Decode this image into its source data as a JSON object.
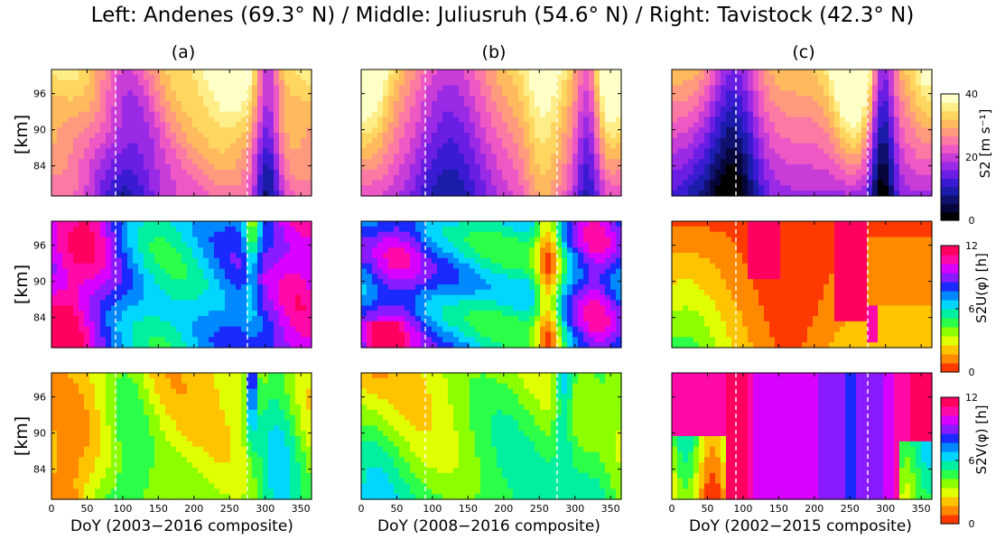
{
  "title": "Left: Andenes (69.3° N) / Middle: Juliusruh (54.6° N) / Right: Tavistock (42.3° N)",
  "panel_labels": [
    "(a)",
    "(b)",
    "(c)"
  ],
  "xlabels": [
    "DoY (2003−2016 composite)",
    "DoY (2008−2016 composite)",
    "DoY (2002−2015 composite)"
  ],
  "ylabel": "[km]",
  "colorbar_labels": [
    "S2 [m s⁻¹]",
    "S2U(φ) [h]",
    "S2V(φ) [h]"
  ],
  "colors": {
    "amp": [
      "#000000",
      "#06063a",
      "#10106e",
      "#1c1caa",
      "#3a1ad2",
      "#6a1ee4",
      "#9a2ae6",
      "#c83cd8",
      "#ee58c4",
      "#fa7aa4",
      "#ff9a7e",
      "#ffba5e",
      "#ffd660",
      "#ffee88",
      "#ffffc8"
    ],
    "phase": [
      "#ff3a00",
      "#ff8a00",
      "#ffc400",
      "#e0ff00",
      "#8cff00",
      "#2cff4a",
      "#00f0a0",
      "#00d6ff",
      "#0088ff",
      "#1a2aff",
      "#8a1aff",
      "#d800ff",
      "#ff0aa8",
      "#ff0060"
    ]
  },
  "chart_data": [
    {
      "type": "heatmap",
      "panel": "(a)",
      "row": "amplitude",
      "station": "Andenes",
      "x_ticks": [],
      "y_ticks": [
        84,
        90,
        96
      ],
      "xlim": [
        0,
        365
      ],
      "ylim": [
        79,
        100
      ],
      "vlines_doy": [
        90,
        275
      ],
      "colorbar": {
        "ticks": [
          0,
          20,
          40
        ],
        "range": [
          0,
          40
        ]
      }
    },
    {
      "type": "heatmap",
      "panel": "(b)",
      "row": "amplitude",
      "station": "Juliusruh",
      "x_ticks": [],
      "y_ticks": [
        84,
        90,
        96
      ],
      "xlim": [
        0,
        365
      ],
      "ylim": [
        79,
        100
      ],
      "vlines_doy": [
        90,
        275
      ]
    },
    {
      "type": "heatmap",
      "panel": "(c)",
      "row": "amplitude",
      "station": "Tavistock",
      "x_ticks": [],
      "y_ticks": [
        84,
        90,
        96
      ],
      "xlim": [
        0,
        365
      ],
      "ylim": [
        79,
        100
      ],
      "vlines_doy": [
        90,
        275
      ]
    },
    {
      "type": "heatmap",
      "panel": "(a)",
      "row": "zonal phase",
      "station": "Andenes",
      "x_ticks": [],
      "y_ticks": [
        84,
        90,
        96
      ],
      "xlim": [
        0,
        365
      ],
      "ylim": [
        79,
        100
      ],
      "vlines_doy": [
        90,
        275
      ],
      "colorbar": {
        "ticks": [
          0,
          6,
          12
        ],
        "range": [
          0,
          12
        ]
      }
    },
    {
      "type": "heatmap",
      "panel": "(b)",
      "row": "zonal phase",
      "station": "Juliusruh",
      "x_ticks": [],
      "y_ticks": [
        84,
        90,
        96
      ],
      "xlim": [
        0,
        365
      ],
      "ylim": [
        79,
        100
      ],
      "vlines_doy": [
        90,
        275
      ]
    },
    {
      "type": "heatmap",
      "panel": "(c)",
      "row": "zonal phase",
      "station": "Tavistock",
      "x_ticks": [],
      "y_ticks": [
        84,
        90,
        96
      ],
      "xlim": [
        0,
        365
      ],
      "ylim": [
        79,
        100
      ],
      "vlines_doy": [
        90,
        275
      ]
    },
    {
      "type": "heatmap",
      "panel": "(a)",
      "row": "meridional phase",
      "station": "Andenes",
      "x_ticks": [
        0,
        50,
        100,
        150,
        200,
        250,
        300,
        350
      ],
      "y_ticks": [
        84,
        90,
        96
      ],
      "xlim": [
        0,
        365
      ],
      "ylim": [
        79,
        100
      ],
      "vlines_doy": [
        90,
        275
      ],
      "colorbar": {
        "ticks": [
          0,
          6,
          12
        ],
        "range": [
          0,
          12
        ]
      }
    },
    {
      "type": "heatmap",
      "panel": "(b)",
      "row": "meridional phase",
      "station": "Juliusruh",
      "x_ticks": [
        0,
        50,
        100,
        150,
        200,
        250,
        300,
        350
      ],
      "y_ticks": [
        84,
        90,
        96
      ],
      "xlim": [
        0,
        365
      ],
      "ylim": [
        79,
        100
      ],
      "vlines_doy": [
        90,
        275
      ]
    },
    {
      "type": "heatmap",
      "panel": "(c)",
      "row": "meridional phase",
      "station": "Tavistock",
      "x_ticks": [
        0,
        50,
        100,
        150,
        200,
        250,
        300,
        350
      ],
      "y_ticks": [
        84,
        90,
        96
      ],
      "xlim": [
        0,
        365
      ],
      "ylim": [
        79,
        100
      ],
      "vlines_doy": [
        90,
        275
      ]
    }
  ]
}
